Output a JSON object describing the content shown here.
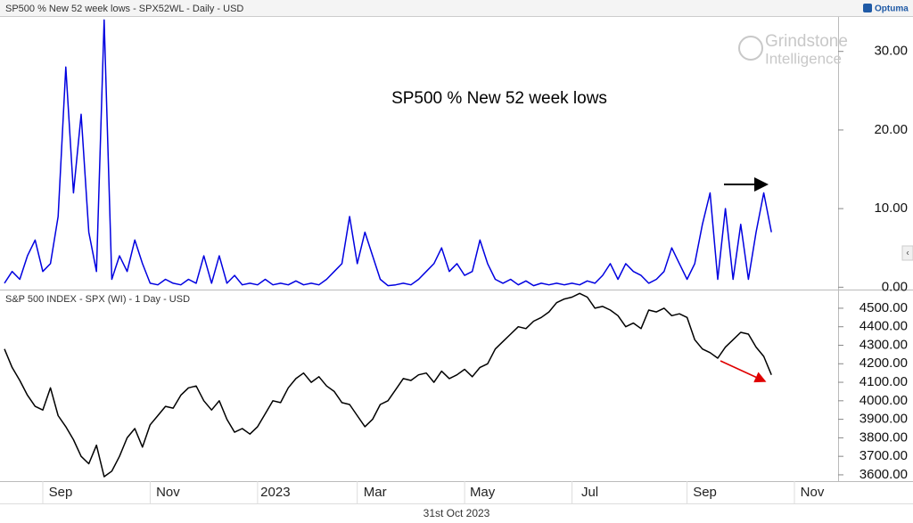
{
  "brand": "Optuma",
  "date": "31st Oct 2023",
  "watermark": [
    "Grindstone",
    "Intelligence"
  ],
  "chart_data": [
    {
      "type": "line",
      "title": "SP500 % New 52 week lows - SPX52WL - Daily - USD",
      "annotation": "SP500 % New 52 week lows",
      "series": [
        {
          "name": "SPX52WL",
          "color": "#0000e0",
          "values": [
            0.5,
            2,
            1,
            4,
            6,
            2,
            3,
            9,
            28,
            12,
            22,
            7,
            2,
            34,
            1,
            4,
            2,
            6,
            3,
            0.5,
            0.3,
            1,
            0.5,
            0.3,
            1,
            0.5,
            4,
            0.5,
            4,
            0.5,
            1.5,
            0.3,
            0.5,
            0.3,
            1,
            0.3,
            0.5,
            0.3,
            0.8,
            0.3,
            0.5,
            0.3,
            1,
            2,
            3,
            9,
            3,
            7,
            4,
            1,
            0.2,
            0.3,
            0.5,
            0.3,
            1,
            2,
            3,
            5,
            2,
            3,
            1.5,
            2,
            6,
            3,
            1,
            0.5,
            1,
            0.3,
            0.8,
            0.2,
            0.5,
            0.3,
            0.5,
            0.3,
            0.5,
            0.3,
            0.8,
            0.5,
            1.5,
            3,
            1,
            3,
            2,
            1.5,
            0.5,
            1,
            2,
            5,
            3,
            1,
            3,
            8,
            12,
            1,
            10,
            1,
            8,
            1,
            7,
            12,
            7,
            null,
            null,
            null,
            null,
            null,
            null,
            null,
            null
          ]
        }
      ],
      "ylim": [
        -0.3,
        34.5
      ],
      "yticks": [
        {
          "value": 0,
          "label": "0.00"
        },
        {
          "value": 10,
          "label": "10.00"
        },
        {
          "value": 20,
          "label": "20.00"
        },
        {
          "value": 30,
          "label": "30.00"
        }
      ]
    },
    {
      "type": "line",
      "title": "S&P 500 INDEX - SPX (WI) - 1 Day - USD",
      "categories": [
        null,
        null,
        null,
        null,
        null,
        "Sep",
        null,
        null,
        null,
        null,
        null,
        null,
        null,
        null,
        null,
        null,
        null,
        null,
        null,
        "Nov",
        null,
        null,
        null,
        null,
        null,
        null,
        null,
        null,
        null,
        null,
        null,
        null,
        null,
        "2023",
        null,
        null,
        null,
        null,
        null,
        null,
        null,
        null,
        null,
        null,
        null,
        null,
        "Mar",
        null,
        null,
        null,
        null,
        null,
        null,
        null,
        null,
        null,
        null,
        null,
        null,
        null,
        "May",
        null,
        null,
        null,
        null,
        null,
        null,
        null,
        null,
        null,
        null,
        null,
        null,
        null,
        "Jul",
        null,
        null,
        null,
        null,
        null,
        null,
        null,
        null,
        null,
        null,
        null,
        null,
        null,
        null,
        "Sep",
        null,
        null,
        null,
        null,
        null,
        null,
        null,
        null,
        null,
        null,
        null,
        null,
        null,
        "Nov",
        null,
        null,
        null,
        null,
        null
      ],
      "series": [
        {
          "name": "SPX",
          "color": "#000000",
          "values": [
            4280,
            4180,
            4110,
            4030,
            3970,
            3950,
            4070,
            3920,
            3860,
            3790,
            3700,
            3660,
            3760,
            3590,
            3620,
            3700,
            3800,
            3850,
            3750,
            3870,
            3920,
            3970,
            3960,
            4030,
            4070,
            4080,
            4000,
            3950,
            4000,
            3900,
            3830,
            3850,
            3820,
            3860,
            3930,
            4000,
            3990,
            4070,
            4120,
            4150,
            4100,
            4130,
            4080,
            4050,
            3990,
            3980,
            3920,
            3860,
            3900,
            3980,
            4000,
            4060,
            4120,
            4110,
            4140,
            4150,
            4100,
            4160,
            4120,
            4140,
            4170,
            4130,
            4180,
            4200,
            4280,
            4320,
            4360,
            4400,
            4390,
            4430,
            4450,
            4480,
            4530,
            4550,
            4560,
            4580,
            4560,
            4500,
            4510,
            4490,
            4460,
            4400,
            4420,
            4390,
            4490,
            4480,
            4500,
            4460,
            4470,
            4450,
            4330,
            4280,
            4260,
            4230,
            4290,
            4330,
            4370,
            4360,
            4290,
            4240,
            4140,
            null,
            null,
            null,
            null,
            null,
            null,
            null,
            null
          ]
        }
      ],
      "ylim": [
        3566,
        4596
      ],
      "yticks": [
        {
          "value": 3600,
          "label": "3600.00"
        },
        {
          "value": 3700,
          "label": "3700.00"
        },
        {
          "value": 3800,
          "label": "3800.00"
        },
        {
          "value": 3900,
          "label": "3900.00"
        },
        {
          "value": 4000,
          "label": "4000.00"
        },
        {
          "value": 4100,
          "label": "4100.00"
        },
        {
          "value": 4200,
          "label": "4200.00"
        },
        {
          "value": 4300,
          "label": "4300.00"
        },
        {
          "value": 4400,
          "label": "4400.00"
        },
        {
          "value": 4500,
          "label": "4500.00"
        }
      ]
    }
  ]
}
